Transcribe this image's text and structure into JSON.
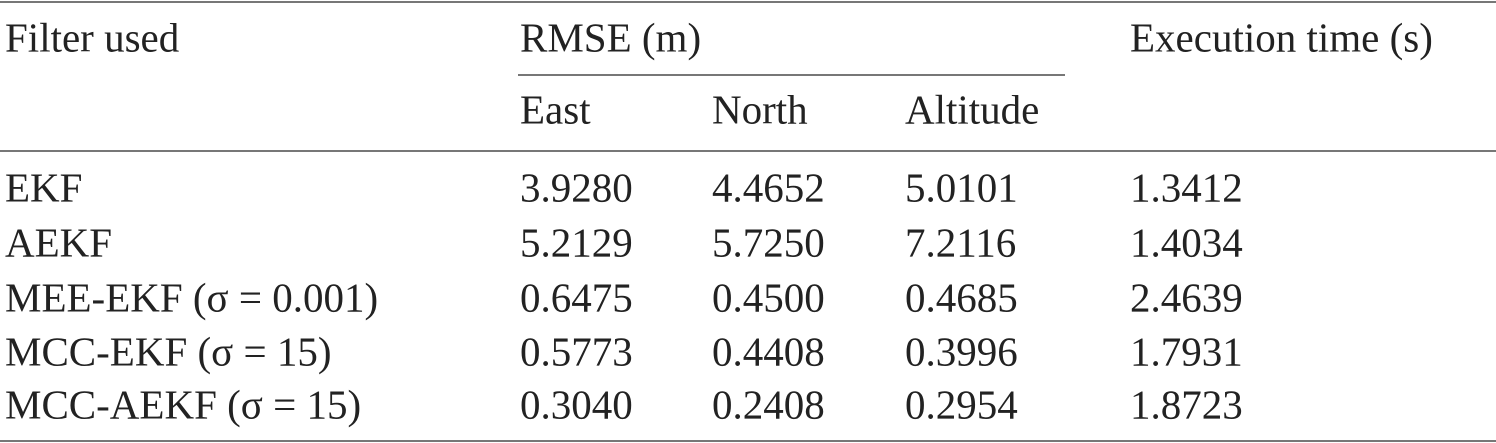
{
  "table": {
    "headers": {
      "filter": "Filter used",
      "rmse": "RMSE (m)",
      "time": "Execution time (s)",
      "east": "East",
      "north": "North",
      "altitude": "Altitude"
    },
    "rows": [
      [
        "EKF",
        "3.9280",
        "4.4652",
        "5.0101",
        "1.3412"
      ],
      [
        "AEKF",
        "5.2129",
        "5.7250",
        "7.2116",
        "1.4034"
      ],
      [
        "MEE-EKF (σ = 0.001)",
        "0.6475",
        "0.4500",
        "0.4685",
        "2.4639"
      ],
      [
        "MCC-EKF (σ = 15)",
        "0.5773",
        "0.4408",
        "0.3996",
        "1.7931"
      ],
      [
        "MCC-AEKF (σ = 15)",
        "0.3040",
        "0.2408",
        "0.2954",
        "1.8723"
      ]
    ]
  }
}
